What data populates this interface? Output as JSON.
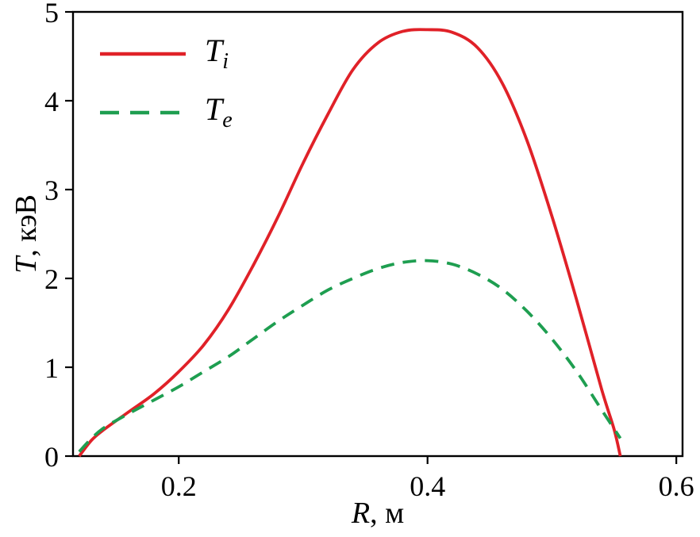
{
  "chart_data": {
    "type": "line",
    "title": "",
    "xlabel_var": "R",
    "xlabel_rest": ", м",
    "ylabel_var": "T",
    "ylabel_rest": ", кэВ",
    "xlim": [
      0.115,
      0.605
    ],
    "ylim": [
      0,
      5
    ],
    "x_ticks": [
      0.2,
      0.4,
      0.6
    ],
    "x_tick_labels": [
      "0.2",
      "0.4",
      "0.6"
    ],
    "y_ticks": [
      0,
      1,
      2,
      3,
      4,
      5
    ],
    "y_tick_labels": [
      "0",
      "1",
      "2",
      "3",
      "4",
      "5"
    ],
    "grid": false,
    "legend_position": "top-left",
    "frame_color": "#000000",
    "series": [
      {
        "name_base": "T",
        "name_sub": "i",
        "color": "#e02128",
        "style": "solid",
        "x": [
          0.12,
          0.13,
          0.14,
          0.16,
          0.18,
          0.2,
          0.22,
          0.24,
          0.26,
          0.28,
          0.3,
          0.32,
          0.34,
          0.36,
          0.38,
          0.4,
          0.42,
          0.44,
          0.46,
          0.48,
          0.5,
          0.52,
          0.54,
          0.55,
          0.555
        ],
        "y": [
          0.0,
          0.18,
          0.3,
          0.5,
          0.7,
          0.95,
          1.25,
          1.65,
          2.15,
          2.7,
          3.3,
          3.85,
          4.35,
          4.65,
          4.78,
          4.8,
          4.77,
          4.6,
          4.2,
          3.55,
          2.7,
          1.75,
          0.75,
          0.3,
          0.0
        ]
      },
      {
        "name_base": "T",
        "name_sub": "e",
        "color": "#1e9e50",
        "style": "dashed",
        "x": [
          0.12,
          0.13,
          0.14,
          0.16,
          0.18,
          0.2,
          0.22,
          0.24,
          0.26,
          0.28,
          0.3,
          0.32,
          0.34,
          0.36,
          0.38,
          0.4,
          0.42,
          0.44,
          0.46,
          0.48,
          0.5,
          0.52,
          0.54,
          0.555
        ],
        "y": [
          0.05,
          0.2,
          0.32,
          0.48,
          0.63,
          0.78,
          0.95,
          1.12,
          1.32,
          1.52,
          1.7,
          1.87,
          2.0,
          2.11,
          2.18,
          2.2,
          2.16,
          2.05,
          1.88,
          1.63,
          1.32,
          0.95,
          0.52,
          0.2
        ]
      }
    ]
  }
}
